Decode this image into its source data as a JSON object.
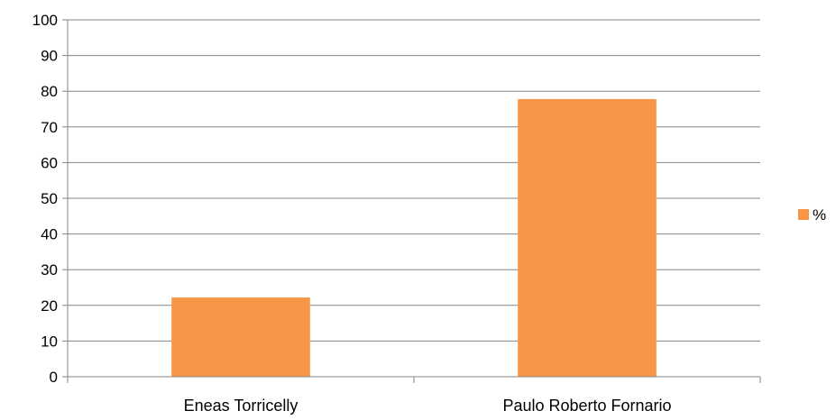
{
  "chart_data": {
    "type": "bar",
    "title": "",
    "xlabel": "",
    "ylabel": "",
    "categories": [
      "Eneas Torricelly",
      "Paulo Roberto Fornario"
    ],
    "series": [
      {
        "name": "%",
        "color": "#f79646",
        "values": [
          22.2,
          77.8
        ]
      }
    ],
    "ylim": [
      0,
      100
    ],
    "yticks": [
      "0",
      "10",
      "20",
      "30",
      "40",
      "50",
      "60",
      "70",
      "80",
      "90",
      "100"
    ],
    "grid": true,
    "legend_position": "right"
  }
}
